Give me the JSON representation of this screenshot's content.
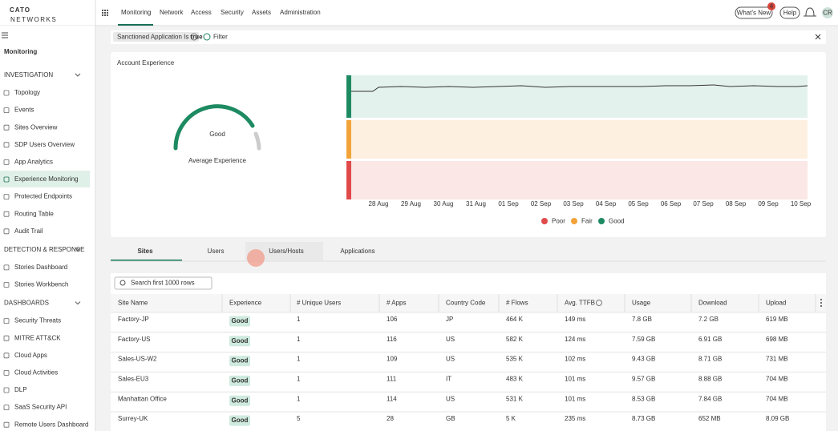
{
  "header": {
    "logo": "CATO",
    "logo_sub": "NETWORKS",
    "nav": [
      "Monitoring",
      "Network",
      "Access",
      "Security",
      "Assets",
      "Administration"
    ],
    "whats_new": "What's New",
    "badge": "4",
    "help": "Help",
    "avatar": "CR"
  },
  "sidebar": {
    "title": "Monitoring",
    "sections": [
      {
        "title": "INVESTIGATION",
        "items": [
          "Topology",
          "Events",
          "Sites Overview",
          "SDP Users Overview",
          "App Analytics",
          "Experience Monitoring",
          "Protected Endpoints",
          "Routing Table",
          "Audit Trail"
        ]
      },
      {
        "title": "DETECTION & RESPONSE",
        "items": [
          "Stories Dashboard",
          "Stories Workbench"
        ]
      },
      {
        "title": "DASHBOARDS",
        "items": [
          "Security Threats",
          "MITRE ATT&CK",
          "Cloud Apps",
          "Cloud Activities",
          "DLP",
          "SaaS Security API",
          "Remote Users Dashboard"
        ]
      }
    ]
  },
  "filter": {
    "chip_field": "Sanctioned Application Is",
    "chip_value": "true",
    "add": "Filter"
  },
  "card": {
    "title": "Account Experience",
    "gauge_value": "Good",
    "gauge_label": "Average Experience",
    "dates": [
      "28 Aug",
      "29 Aug",
      "30 Aug",
      "31 Aug",
      "01 Sep",
      "02 Sep",
      "03 Sep",
      "04 Sep",
      "05 Sep",
      "06 Sep",
      "07 Sep",
      "08 Sep",
      "09 Sep",
      "10 Sep"
    ],
    "legend": [
      "Poor",
      "Fair",
      "Good"
    ]
  },
  "tabs": [
    "Sites",
    "Users",
    "Users/Hosts",
    "Applications"
  ],
  "table": {
    "search": "Search first 1000 rows",
    "columns": [
      "Site Name",
      "Experience",
      "# Unique Users",
      "# Apps",
      "Country Code",
      "# Flows",
      "Avg. TTFB",
      "Usage",
      "Download",
      "Upload"
    ],
    "rows": [
      [
        "Factory-JP",
        "Good",
        "1",
        "106",
        "JP",
        "464 K",
        "149 ms",
        "7.8 GB",
        "7.2 GB",
        "619 MB"
      ],
      [
        "Factory-US",
        "Good",
        "1",
        "116",
        "US",
        "582 K",
        "124 ms",
        "7.59 GB",
        "6.91 GB",
        "698 MB"
      ],
      [
        "Sales-US-W2",
        "Good",
        "1",
        "109",
        "US",
        "535 K",
        "102 ms",
        "9.43 GB",
        "8.71 GB",
        "731 MB"
      ],
      [
        "Sales-EU3",
        "Good",
        "1",
        "111",
        "IT",
        "483 K",
        "101 ms",
        "9.57 GB",
        "8.88 GB",
        "704 MB"
      ],
      [
        "Manhattan Office",
        "Good",
        "1",
        "114",
        "US",
        "531 K",
        "101 ms",
        "8.53 GB",
        "7.84 GB",
        "704 MB"
      ],
      [
        "Surrey-UK",
        "Good",
        "5",
        "28",
        "GB",
        "5 K",
        "235 ms",
        "8.73 GB",
        "652 MB",
        "8.09 GB"
      ]
    ]
  }
}
